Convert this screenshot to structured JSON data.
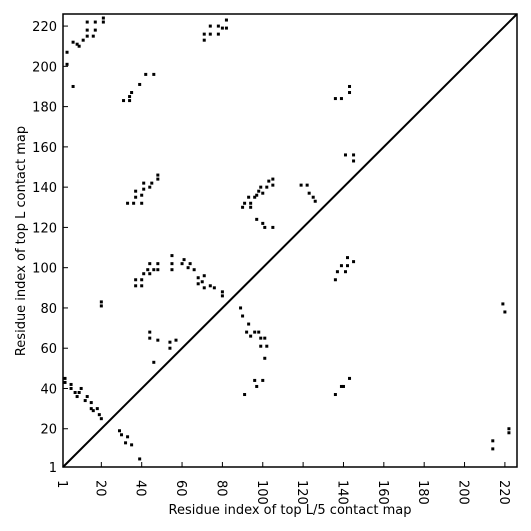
{
  "chart_data": {
    "type": "scatter",
    "xlabel": "Residue index of top L/5 contact map",
    "ylabel": "Residue index of top L contact map",
    "color": "#000000",
    "xlim": [
      1,
      226
    ],
    "ylim": [
      1,
      226
    ],
    "xticks": [
      1,
      20,
      40,
      60,
      80,
      100,
      120,
      140,
      160,
      180,
      200,
      220
    ],
    "yticks": [
      1,
      20,
      40,
      60,
      80,
      100,
      120,
      140,
      160,
      180,
      200,
      220
    ],
    "x": [
      3,
      3,
      6,
      6,
      8,
      9,
      11,
      13,
      13,
      13,
      16,
      17,
      17,
      21,
      21,
      71,
      71,
      74,
      74,
      78,
      78,
      80,
      82,
      82,
      31,
      34,
      34,
      35,
      39,
      42,
      46,
      136,
      139,
      143,
      143,
      33,
      36,
      37,
      37,
      40,
      40,
      41,
      41,
      44,
      45,
      48,
      48,
      90,
      91,
      93,
      94,
      94,
      96,
      97,
      98,
      99,
      100,
      102,
      103,
      105,
      105,
      97,
      100,
      101,
      105,
      119,
      122,
      123,
      125,
      126,
      141,
      145,
      145,
      37,
      37,
      40,
      40,
      41,
      43,
      44,
      44,
      46,
      48,
      48,
      55,
      55,
      55,
      60,
      61,
      63,
      64,
      66,
      68,
      68,
      70,
      71,
      71,
      74,
      76,
      80,
      80,
      136,
      137,
      139,
      141,
      142,
      142,
      145,
      20,
      20,
      2,
      2,
      5,
      5,
      7,
      8,
      9,
      10,
      12,
      13,
      15,
      15,
      16,
      18,
      19,
      20,
      29,
      30,
      32,
      33,
      35,
      39,
      44,
      44,
      46,
      48,
      54,
      54,
      57,
      89,
      90,
      92,
      93,
      94,
      96,
      96,
      97,
      99,
      99,
      101,
      101,
      102,
      100,
      91,
      98,
      136,
      139,
      140,
      143,
      214,
      214,
      219,
      220,
      222,
      222
    ],
    "values": [
      201,
      207,
      190,
      212,
      211,
      210,
      213,
      215,
      218,
      222,
      215,
      218,
      222,
      222,
      224,
      213,
      216,
      216,
      220,
      216,
      220,
      219,
      219,
      223,
      183,
      183,
      185,
      187,
      191,
      196,
      196,
      184,
      184,
      187,
      190,
      132,
      132,
      135,
      138,
      132,
      136,
      139,
      142,
      140,
      142,
      144,
      146,
      130,
      132,
      135,
      130,
      132,
      135,
      136,
      138,
      140,
      137,
      140,
      143,
      141,
      144,
      124,
      122,
      120,
      120,
      141,
      141,
      137,
      135,
      133,
      156,
      153,
      156,
      91,
      94,
      91,
      94,
      97,
      99,
      97,
      102,
      99,
      99,
      102,
      99,
      102,
      106,
      102,
      104,
      100,
      102,
      99,
      95,
      92,
      93,
      90,
      96,
      91,
      90,
      88,
      86,
      94,
      98,
      101,
      98,
      101,
      105,
      103,
      81,
      83,
      45,
      43,
      40,
      42,
      38,
      36,
      38,
      40,
      34,
      36,
      30,
      33,
      29,
      30,
      27,
      25,
      19,
      17,
      13,
      16,
      12,
      5,
      65,
      68,
      53,
      64,
      63,
      60,
      64,
      80,
      76,
      68,
      72,
      66,
      68,
      44,
      41,
      65,
      61,
      65,
      55,
      61,
      44,
      37,
      68,
      37,
      41,
      41,
      45,
      14,
      10,
      82,
      78,
      20,
      18
    ]
  }
}
